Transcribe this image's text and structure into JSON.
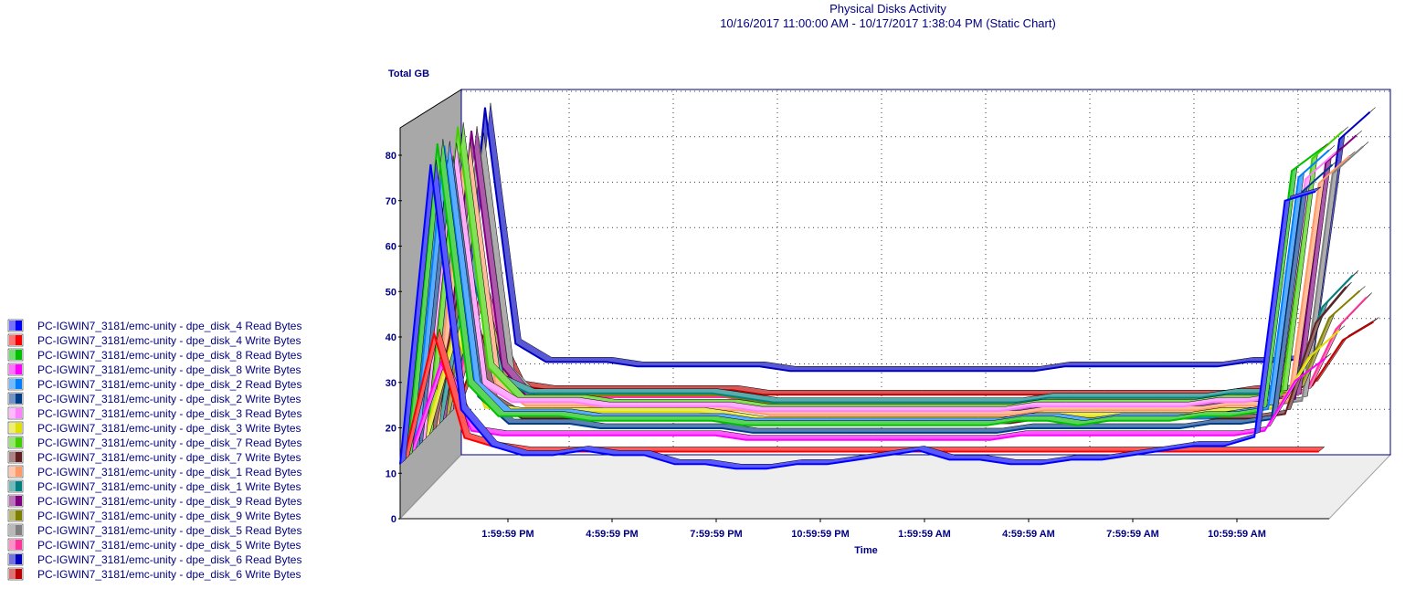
{
  "chart_data": {
    "type": "line",
    "title": "Physical Disks Activity",
    "subtitle": "10/16/2017 11:00:00 AM - 10/17/2017 1:38:04 PM (Static Chart)",
    "ylabel": "Total GB",
    "xlabel": "Time",
    "ylim": [
      0,
      80
    ],
    "y_ticks": [
      0,
      10,
      20,
      30,
      40,
      50,
      60,
      70,
      80
    ],
    "x_tick_labels": [
      "1:59:59 PM",
      "4:59:59 PM",
      "7:59:59 PM",
      "10:59:59 PM",
      "1:59:59 AM",
      "4:59:59 AM",
      "7:59:59 AM",
      "10:59:59 AM"
    ],
    "grid": true,
    "legend_position": "left",
    "series": [
      {
        "name": "PC-IGWIN7_3181/emc-unity - dpe_disk_4 Read Bytes",
        "color": "#0000ff",
        "values": [
          12,
          78,
          24,
          16,
          14,
          14,
          15,
          14,
          14,
          12,
          12,
          11,
          11,
          12,
          12,
          13,
          14,
          15,
          13,
          13,
          12,
          12,
          13,
          13,
          14,
          15,
          16,
          16,
          18,
          70,
          72
        ]
      },
      {
        "name": "PC-IGWIN7_3181/emc-unity - dpe_disk_4 Write Bytes",
        "color": "#ff0000",
        "values": [
          12,
          40,
          17,
          15,
          14,
          14,
          14,
          14,
          14,
          14,
          14,
          14,
          14,
          14,
          14,
          14,
          14,
          14,
          14,
          14,
          14,
          14,
          14,
          14,
          14,
          14,
          14,
          14,
          14,
          14,
          14
        ]
      },
      {
        "name": "PC-IGWIN7_3181/emc-unity - dpe_disk_8 Read Bytes",
        "color": "#00c000",
        "values": [
          12,
          81,
          28,
          21,
          21,
          21,
          20,
          20,
          20,
          20,
          20,
          19,
          19,
          19,
          19,
          19,
          19,
          19,
          19,
          19,
          20,
          20,
          19,
          20,
          20,
          20,
          21,
          21,
          22,
          75,
          80
        ]
      },
      {
        "name": "PC-IGWIN7_3181/emc-unity - dpe_disk_8 Write Bytes",
        "color": "#ff00ff",
        "values": [
          12,
          32,
          17,
          16,
          16,
          16,
          16,
          16,
          16,
          16,
          16,
          15,
          15,
          15,
          15,
          15,
          15,
          15,
          15,
          15,
          16,
          16,
          16,
          16,
          16,
          16,
          16,
          16,
          17,
          28,
          33
        ]
      },
      {
        "name": "PC-IGWIN7_3181/emc-unity - dpe_disk_2 Read Bytes",
        "color": "#0080ff",
        "values": [
          12,
          79,
          26,
          20,
          20,
          20,
          19,
          19,
          19,
          19,
          19,
          18,
          18,
          18,
          18,
          18,
          18,
          18,
          18,
          18,
          19,
          19,
          18,
          19,
          19,
          19,
          19,
          20,
          21,
          72,
          78
        ]
      },
      {
        "name": "PC-IGWIN7_3181/emc-unity - dpe_disk_2 Write Bytes",
        "color": "#003c8c",
        "values": [
          12,
          75,
          23,
          17,
          17,
          17,
          16,
          16,
          16,
          16,
          16,
          15,
          15,
          15,
          15,
          15,
          15,
          15,
          15,
          15,
          16,
          16,
          16,
          16,
          16,
          16,
          17,
          17,
          18,
          68,
          74
        ]
      },
      {
        "name": "PC-IGWIN7_3181/emc-unity - dpe_disk_3 Read Bytes",
        "color": "#ff80ff",
        "values": [
          12,
          77,
          25,
          21,
          21,
          21,
          20,
          20,
          20,
          20,
          20,
          19,
          19,
          19,
          19,
          19,
          19,
          19,
          19,
          19,
          20,
          20,
          20,
          20,
          20,
          20,
          21,
          21,
          22,
          70,
          76
        ]
      },
      {
        "name": "PC-IGWIN7_3181/emc-unity - dpe_disk_3 Write Bytes",
        "color": "#e0e000",
        "values": [
          12,
          36,
          19,
          18,
          18,
          18,
          18,
          18,
          18,
          18,
          17,
          16,
          16,
          16,
          16,
          16,
          16,
          16,
          16,
          16,
          17,
          17,
          17,
          17,
          17,
          17,
          18,
          18,
          19,
          30,
          36
        ]
      },
      {
        "name": "PC-IGWIN7_3181/emc-unity - dpe_disk_7 Read Bytes",
        "color": "#40d000",
        "values": [
          12,
          80,
          27,
          20,
          20,
          20,
          19,
          19,
          19,
          19,
          19,
          18,
          18,
          18,
          18,
          18,
          18,
          18,
          18,
          18,
          19,
          19,
          19,
          19,
          19,
          19,
          20,
          20,
          21,
          73,
          79
        ]
      },
      {
        "name": "PC-IGWIN7_3181/emc-unity - dpe_disk_7 Write Bytes",
        "color": "#602020",
        "values": [
          12,
          46,
          19,
          15,
          15,
          15,
          15,
          15,
          15,
          15,
          15,
          14,
          14,
          14,
          14,
          14,
          14,
          14,
          14,
          14,
          15,
          15,
          15,
          15,
          15,
          15,
          15,
          15,
          16,
          36,
          44
        ]
      },
      {
        "name": "PC-IGWIN7_3181/emc-unity - dpe_disk_1 Read Bytes",
        "color": "#ff9966",
        "values": [
          12,
          74,
          22,
          17,
          17,
          17,
          16,
          16,
          16,
          16,
          16,
          15,
          15,
          15,
          15,
          15,
          15,
          15,
          15,
          15,
          16,
          16,
          16,
          16,
          16,
          16,
          17,
          17,
          18,
          66,
          72
        ]
      },
      {
        "name": "PC-IGWIN7_3181/emc-unity - dpe_disk_1 Write Bytes",
        "color": "#008080",
        "values": [
          12,
          49,
          22,
          19,
          19,
          19,
          19,
          19,
          19,
          19,
          18,
          17,
          17,
          17,
          17,
          17,
          17,
          17,
          17,
          17,
          18,
          18,
          18,
          18,
          18,
          18,
          19,
          19,
          20,
          38,
          45
        ]
      },
      {
        "name": "PC-IGWIN7_3181/emc-unity - dpe_disk_9 Read Bytes",
        "color": "#800080",
        "values": [
          12,
          76,
          24,
          16,
          16,
          16,
          15,
          15,
          15,
          15,
          15,
          14,
          14,
          14,
          14,
          14,
          14,
          14,
          14,
          14,
          15,
          15,
          15,
          15,
          15,
          15,
          16,
          16,
          17,
          69,
          75
        ]
      },
      {
        "name": "PC-IGWIN7_3181/emc-unity - dpe_disk_9 Write Bytes",
        "color": "#808000",
        "values": [
          12,
          43,
          18,
          17,
          17,
          17,
          17,
          17,
          17,
          17,
          16,
          15,
          15,
          15,
          15,
          15,
          15,
          15,
          15,
          15,
          16,
          16,
          16,
          16,
          16,
          16,
          17,
          17,
          18,
          34,
          40
        ]
      },
      {
        "name": "PC-IGWIN7_3181/emc-unity - dpe_disk_5 Read Bytes",
        "color": "#808080",
        "values": [
          12,
          73,
          21,
          14,
          14,
          14,
          14,
          14,
          14,
          14,
          14,
          13,
          13,
          13,
          13,
          13,
          13,
          13,
          13,
          13,
          14,
          14,
          14,
          14,
          14,
          14,
          14,
          14,
          15,
          65,
          71
        ]
      },
      {
        "name": "PC-IGWIN7_3181/emc-unity - dpe_disk_5 Write Bytes",
        "color": "#ff3399",
        "values": [
          12,
          39,
          16,
          15,
          15,
          15,
          15,
          15,
          15,
          15,
          14,
          13,
          13,
          13,
          13,
          13,
          13,
          13,
          13,
          13,
          14,
          14,
          14,
          14,
          14,
          14,
          15,
          15,
          16,
          30,
          37
        ]
      },
      {
        "name": "PC-IGWIN7_3181/emc-unity - dpe_disk_6 Read Bytes",
        "color": "#0000c0",
        "values": [
          12,
          78,
          26,
          22,
          22,
          22,
          21,
          21,
          21,
          21,
          21,
          20,
          20,
          20,
          20,
          20,
          20,
          20,
          20,
          20,
          21,
          21,
          21,
          21,
          21,
          21,
          22,
          22,
          23,
          71,
          77
        ]
      },
      {
        "name": "PC-IGWIN7_3181/emc-unity - dpe_disk_6 Write Bytes",
        "color": "#c00000",
        "values": [
          12,
          30,
          16,
          15,
          15,
          15,
          15,
          15,
          15,
          15,
          14,
          14,
          14,
          14,
          14,
          14,
          14,
          14,
          14,
          14,
          14,
          14,
          14,
          14,
          14,
          14,
          15,
          15,
          16,
          26,
          30
        ]
      }
    ]
  }
}
